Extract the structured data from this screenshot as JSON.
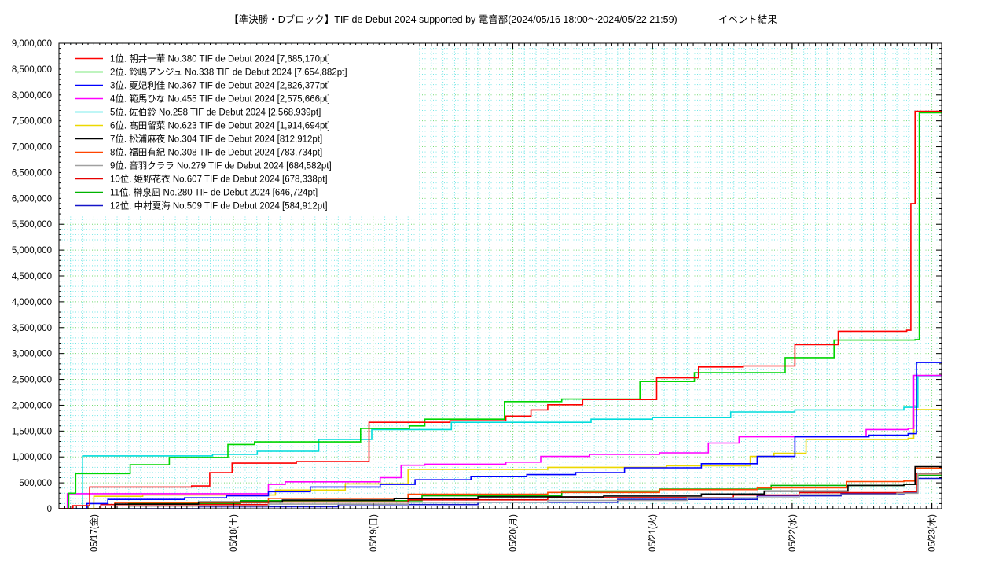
{
  "header": {
    "title": "【準決勝・Dブロック】TIF de Debut 2024 supported by 電音部(2024/05/16 18:00〜2024/05/22 21:59)",
    "result_label": "イベント結果"
  },
  "chart_data": {
    "type": "line",
    "style": "step-after cumulative points race",
    "xlabel": "date",
    "ylabel": "points",
    "xlim": [
      0,
      6.32
    ],
    "ylim": [
      0,
      9000000
    ],
    "y_major_step": 500000,
    "y_minor_step": 100000,
    "x_minor_grid_step": 0.08333,
    "x_minor_tick_step": 0.04167,
    "grid": {
      "major_color": "rgba(0,185,0,0.55)",
      "minor_color": "rgba(0,210,210,0.55)"
    },
    "legend_position": "top-left",
    "x_ticks": [
      {
        "t": 0.25,
        "label": "05/17(金)"
      },
      {
        "t": 1.25,
        "label": "05/18(土)"
      },
      {
        "t": 2.25,
        "label": "05/19(日)"
      },
      {
        "t": 3.25,
        "label": "05/20(月)"
      },
      {
        "t": 4.25,
        "label": "05/21(火)"
      },
      {
        "t": 5.25,
        "label": "05/22(水)"
      },
      {
        "t": 6.25,
        "label": "05/23(木)"
      }
    ],
    "series": [
      {
        "rank": 1,
        "name": "朝井一華",
        "no": "No.380",
        "event": "TIF de Debut 2024",
        "final_pt": 7685170,
        "label": "1位. 朝井一華 No.380 TIF de Debut 2024 [7,685,170pt]",
        "color": "#ff0000",
        "points": [
          [
            0,
            0
          ],
          [
            0.1,
            60000
          ],
          [
            0.22,
            420000
          ],
          [
            0.95,
            440000
          ],
          [
            1.08,
            700000
          ],
          [
            1.24,
            880000
          ],
          [
            1.7,
            910000
          ],
          [
            2.22,
            1670000
          ],
          [
            2.8,
            1700000
          ],
          [
            3.2,
            1790000
          ],
          [
            3.38,
            1910000
          ],
          [
            3.5,
            2010000
          ],
          [
            3.75,
            2110000
          ],
          [
            4.28,
            2530000
          ],
          [
            4.58,
            2740000
          ],
          [
            4.9,
            2760000
          ],
          [
            5.27,
            3170000
          ],
          [
            5.58,
            3430000
          ],
          [
            6.07,
            3450000
          ],
          [
            6.1,
            5900000
          ],
          [
            6.13,
            7685170
          ]
        ]
      },
      {
        "rank": 2,
        "name": "鈴嶋アンジュ",
        "no": "No.338",
        "event": "TIF de Debut 2024",
        "final_pt": 7654882,
        "label": "2位. 鈴嶋アンジュ No.338 TIF de Debut 2024 [7,654,882pt]",
        "color": "#00d500",
        "points": [
          [
            0,
            0
          ],
          [
            0.07,
            300000
          ],
          [
            0.12,
            680000
          ],
          [
            0.51,
            850000
          ],
          [
            0.79,
            990000
          ],
          [
            1.21,
            1240000
          ],
          [
            1.4,
            1290000
          ],
          [
            2.16,
            1550000
          ],
          [
            2.51,
            1600000
          ],
          [
            2.62,
            1730000
          ],
          [
            3.19,
            2070000
          ],
          [
            3.6,
            2120000
          ],
          [
            4.16,
            2460000
          ],
          [
            4.55,
            2630000
          ],
          [
            5.2,
            2920000
          ],
          [
            5.55,
            3260000
          ],
          [
            6.13,
            3270000
          ],
          [
            6.16,
            7654882
          ]
        ]
      },
      {
        "rank": 3,
        "name": "夏妃利佳",
        "no": "No.367",
        "event": "TIF de Debut 2024",
        "final_pt": 2826377,
        "label": "3位. 夏妃利佳 No.367 TIF de Debut 2024 [2,826,377pt]",
        "color": "#0000ff",
        "points": [
          [
            0,
            0
          ],
          [
            0.2,
            100000
          ],
          [
            0.35,
            180000
          ],
          [
            0.9,
            210000
          ],
          [
            1.2,
            250000
          ],
          [
            1.5,
            330000
          ],
          [
            1.8,
            420000
          ],
          [
            2.3,
            470000
          ],
          [
            2.55,
            560000
          ],
          [
            2.95,
            620000
          ],
          [
            3.35,
            660000
          ],
          [
            3.7,
            700000
          ],
          [
            4.05,
            790000
          ],
          [
            4.6,
            870000
          ],
          [
            5.0,
            1010000
          ],
          [
            5.27,
            1390000
          ],
          [
            5.8,
            1420000
          ],
          [
            6.08,
            1450000
          ],
          [
            6.14,
            2826377
          ]
        ]
      },
      {
        "rank": 4,
        "name": "範馬ひな",
        "no": "No.455",
        "event": "TIF de Debut 2024",
        "final_pt": 2575666,
        "label": "4位. 範馬ひな No.455 TIF de Debut 2024 [2,575,666pt]",
        "color": "#ff00ff",
        "points": [
          [
            0,
            0
          ],
          [
            0.06,
            290000
          ],
          [
            1.5,
            470000
          ],
          [
            1.62,
            520000
          ],
          [
            2.3,
            600000
          ],
          [
            2.45,
            840000
          ],
          [
            2.62,
            860000
          ],
          [
            3.2,
            900000
          ],
          [
            3.45,
            1010000
          ],
          [
            3.8,
            1050000
          ],
          [
            4.3,
            1080000
          ],
          [
            4.65,
            1270000
          ],
          [
            4.87,
            1390000
          ],
          [
            5.78,
            1530000
          ],
          [
            6.08,
            1550000
          ],
          [
            6.12,
            2575666
          ]
        ]
      },
      {
        "rank": 5,
        "name": "佐伯鈴",
        "no": "No.258",
        "event": "TIF de Debut 2024",
        "final_pt": 2568939,
        "label": "5位. 佐伯鈴 No.258 TIF de Debut 2024 [2,568,939pt]",
        "color": "#00dcdc",
        "points": [
          [
            0,
            0
          ],
          [
            0.17,
            1020000
          ],
          [
            1.1,
            1050000
          ],
          [
            1.42,
            1110000
          ],
          [
            1.86,
            1340000
          ],
          [
            2.24,
            1530000
          ],
          [
            2.81,
            1670000
          ],
          [
            3.81,
            1730000
          ],
          [
            4.25,
            1760000
          ],
          [
            4.81,
            1870000
          ],
          [
            5.27,
            1910000
          ],
          [
            6.05,
            1960000
          ],
          [
            6.15,
            2568939
          ]
        ]
      },
      {
        "rank": 6,
        "name": "髙田留菜",
        "no": "No.623",
        "event": "TIF de Debut 2024",
        "final_pt": 1914694,
        "label": "6位. 髙田留菜 No.623 TIF de Debut 2024 [1,914,694pt]",
        "color": "#ecd800",
        "points": [
          [
            0,
            0
          ],
          [
            0.25,
            240000
          ],
          [
            0.6,
            265000
          ],
          [
            1.55,
            360000
          ],
          [
            2.05,
            480000
          ],
          [
            2.5,
            760000
          ],
          [
            3.5,
            800000
          ],
          [
            4.35,
            830000
          ],
          [
            4.95,
            1010000
          ],
          [
            5.12,
            1070000
          ],
          [
            5.35,
            1340000
          ],
          [
            6.08,
            1360000
          ],
          [
            6.12,
            1914694
          ]
        ]
      },
      {
        "rank": 7,
        "name": "松浦麻夜",
        "no": "No.304",
        "event": "TIF de Debut 2024",
        "final_pt": 812912,
        "label": "7位. 松浦麻夜 No.304 TIF de Debut 2024 [812,912pt]",
        "color": "#000000",
        "points": [
          [
            0,
            0
          ],
          [
            0.4,
            90000
          ],
          [
            1.0,
            130000
          ],
          [
            1.6,
            165000
          ],
          [
            2.4,
            195000
          ],
          [
            3.0,
            230000
          ],
          [
            3.9,
            245000
          ],
          [
            4.6,
            285000
          ],
          [
            5.05,
            340000
          ],
          [
            5.65,
            450000
          ],
          [
            6.05,
            470000
          ],
          [
            6.13,
            812912
          ]
        ]
      },
      {
        "rank": 8,
        "name": "福田有紀",
        "no": "No.308",
        "event": "TIF de Debut 2024",
        "final_pt": 783734,
        "label": "8位. 福田有紀 No.308 TIF de Debut 2024 [783,734pt]",
        "color": "#ff4500",
        "points": [
          [
            0,
            0
          ],
          [
            0.4,
            120000
          ],
          [
            1.5,
            200000
          ],
          [
            2.5,
            280000
          ],
          [
            3.5,
            315000
          ],
          [
            4.3,
            370000
          ],
          [
            5.0,
            405000
          ],
          [
            5.64,
            525000
          ],
          [
            6.05,
            535000
          ],
          [
            6.13,
            783734
          ]
        ]
      },
      {
        "rank": 9,
        "name": "音羽クララ",
        "no": "No.279",
        "event": "TIF de Debut 2024",
        "final_pt": 684582,
        "label": "9位. 音羽クララ No.279 TIF de Debut 2024 [684,582pt]",
        "color": "#a0a0a0",
        "points": [
          [
            0,
            0
          ],
          [
            0.5,
            50000
          ],
          [
            1.5,
            90000
          ],
          [
            2.5,
            125000
          ],
          [
            3.5,
            160000
          ],
          [
            4.5,
            210000
          ],
          [
            5.3,
            270000
          ],
          [
            6.0,
            300000
          ],
          [
            6.15,
            684582
          ]
        ]
      },
      {
        "rank": 10,
        "name": "姫野花衣",
        "no": "No.607",
        "event": "TIF de Debut 2024",
        "final_pt": 678338,
        "label": "10位. 姫野花衣 No.607 TIF de Debut 2024 [678,338pt]",
        "color": "#e60000",
        "points": [
          [
            0,
            0
          ],
          [
            0.3,
            80000
          ],
          [
            1.5,
            130000
          ],
          [
            2.5,
            170000
          ],
          [
            3.5,
            215000
          ],
          [
            4.83,
            265000
          ],
          [
            5.3,
            310000
          ],
          [
            6.05,
            330000
          ],
          [
            6.14,
            678338
          ]
        ]
      },
      {
        "rank": 11,
        "name": "榊泉凪",
        "no": "No.280",
        "event": "TIF de Debut 2024",
        "final_pt": 646724,
        "label": "11位. 榊泉凪 No.280 TIF de Debut 2024 [646,724pt]",
        "color": "#00b400",
        "points": [
          [
            0,
            0
          ],
          [
            0.5,
            100000
          ],
          [
            1.3,
            155000
          ],
          [
            2.6,
            250000
          ],
          [
            3.6,
            340000
          ],
          [
            4.3,
            380000
          ],
          [
            5.1,
            450000
          ],
          [
            6.05,
            470000
          ],
          [
            6.15,
            646724
          ]
        ]
      },
      {
        "rank": 12,
        "name": "中村夏海",
        "no": "No.509",
        "event": "TIF de Debut 2024",
        "final_pt": 584912,
        "label": "12位. 中村夏海 No.509 TIF de Debut 2024 [584,912pt]",
        "color": "#1414c8",
        "points": [
          [
            0,
            0
          ],
          [
            1.0,
            40000
          ],
          [
            2.0,
            80000
          ],
          [
            3.0,
            125000
          ],
          [
            4.0,
            180000
          ],
          [
            5.0,
            250000
          ],
          [
            5.6,
            290000
          ],
          [
            6.05,
            315000
          ],
          [
            6.15,
            584912
          ]
        ]
      }
    ]
  }
}
